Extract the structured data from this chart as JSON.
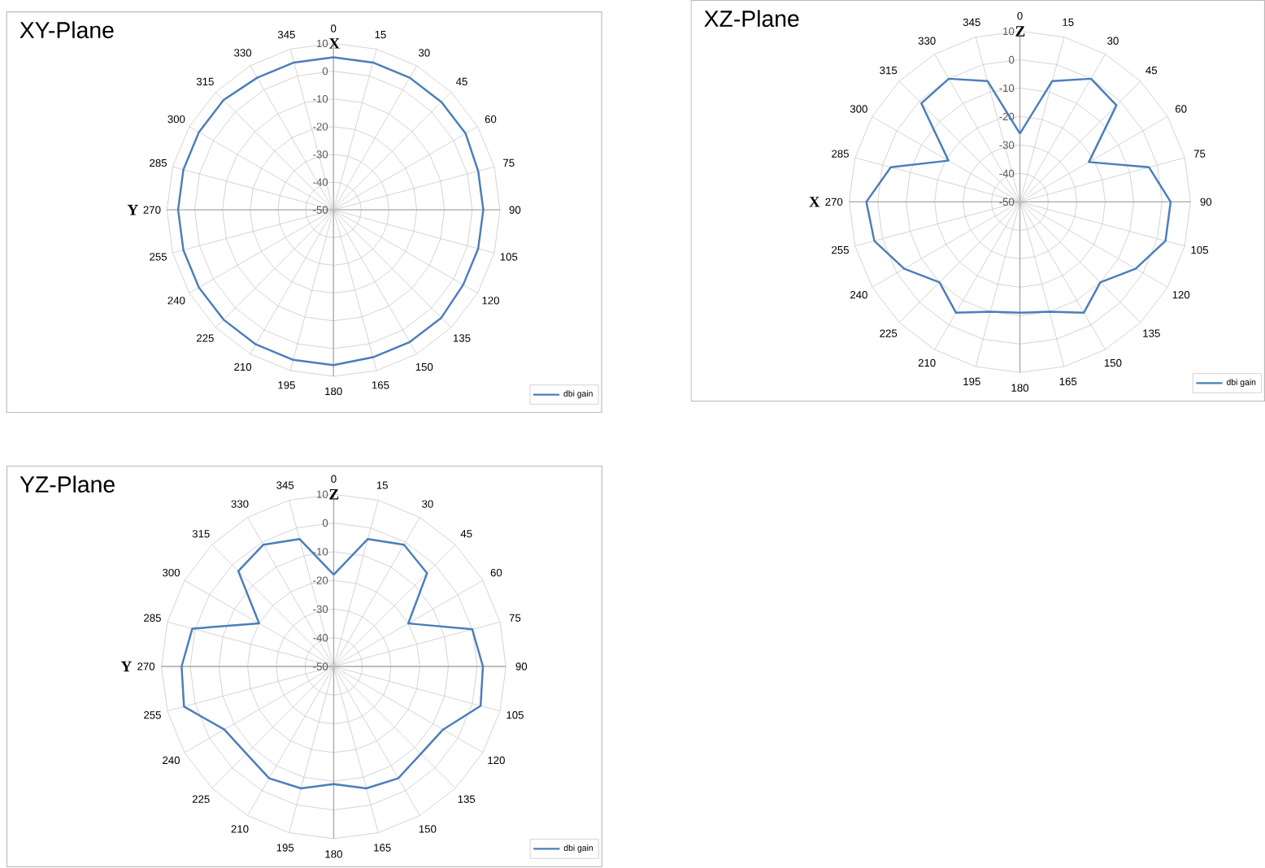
{
  "chart_data": [
    {
      "type": "radar",
      "title": "XY-Plane",
      "categories": [
        "0",
        "15",
        "30",
        "45",
        "60",
        "75",
        "90",
        "105",
        "120",
        "135",
        "150",
        "165",
        "180",
        "195",
        "210",
        "225",
        "240",
        "255",
        "270",
        "285",
        "300",
        "315",
        "330",
        "345"
      ],
      "series": [
        {
          "name": "dbi gain",
          "color": "#4a7ebb",
          "values": [
            5,
            5,
            5,
            5,
            5,
            4,
            4,
            4,
            4,
            5,
            5,
            5,
            6,
            6,
            6,
            6,
            6,
            6,
            6,
            6,
            6,
            6,
            5,
            5
          ]
        }
      ],
      "ylim": [
        -50,
        10
      ],
      "yticks": [
        -50,
        -40,
        -30,
        -20,
        -10,
        0,
        10
      ],
      "grid": true,
      "legend": "bottom right",
      "annotations": [
        "X",
        "Y"
      ]
    },
    {
      "type": "radar",
      "title": "XZ-Plane",
      "categories": [
        "0",
        "15",
        "30",
        "45",
        "60",
        "75",
        "90",
        "105",
        "120",
        "135",
        "150",
        "165",
        "180",
        "195",
        "210",
        "225",
        "240",
        "255",
        "270",
        "285",
        "300",
        "315",
        "330",
        "345"
      ],
      "series": [
        {
          "name": "dbi gain",
          "color": "#4a7ebb",
          "values": [
            -26,
            -6,
            0,
            -2,
            -22,
            -3,
            3,
            3,
            -3,
            -10,
            -5,
            -10,
            -11,
            -10,
            -5,
            -10,
            -3,
            3,
            4,
            -3,
            -21,
            -1,
            0,
            -6
          ]
        }
      ],
      "ylim": [
        -50,
        10
      ],
      "yticks": [
        -50,
        -40,
        -30,
        -20,
        -10,
        0,
        10
      ],
      "grid": true,
      "legend": "bottom right",
      "annotations": [
        "Z",
        "X"
      ]
    },
    {
      "type": "radar",
      "title": "YZ-Plane",
      "categories": [
        "0",
        "15",
        "30",
        "45",
        "60",
        "75",
        "90",
        "105",
        "120",
        "135",
        "150",
        "165",
        "180",
        "195",
        "210",
        "225",
        "240",
        "255",
        "270",
        "285",
        "300",
        "315",
        "330",
        "345"
      ],
      "series": [
        {
          "name": "dbi gain",
          "color": "#4a7ebb",
          "values": [
            -18,
            -4,
            -1,
            -4,
            -20,
            0,
            2,
            3,
            -6,
            -7,
            -5,
            -6,
            -9,
            -6,
            -5,
            -7,
            -6,
            4,
            3,
            1,
            -20,
            -3,
            -1,
            -4
          ]
        }
      ],
      "ylim": [
        -50,
        10
      ],
      "yticks": [
        -50,
        -40,
        -30,
        -20,
        -10,
        0,
        10
      ],
      "grid": true,
      "legend": "bottom right",
      "annotations": [
        "Z",
        "Y"
      ]
    }
  ]
}
